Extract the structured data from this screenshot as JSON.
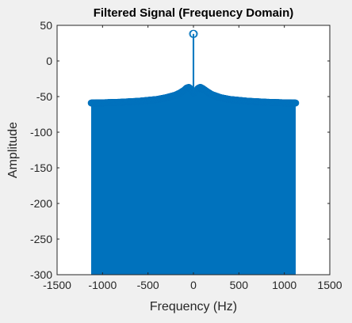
{
  "chart_data": {
    "type": "stem",
    "title": "Filtered Signal (Frequency Domain)",
    "xlabel": "Frequency (Hz)",
    "ylabel": "Amplitude",
    "xlim": [
      -1500,
      1500
    ],
    "ylim": [
      -300,
      50
    ],
    "xticks": [
      -1500,
      -1000,
      -500,
      0,
      500,
      1000,
      1500
    ],
    "yticks": [
      50,
      0,
      -50,
      -100,
      -150,
      -200,
      -250,
      -300
    ],
    "xtick_labels": [
      "-1500",
      "-1000",
      "-500",
      "0",
      "500",
      "1000",
      "1500"
    ],
    "ytick_labels": [
      "50",
      "0",
      "-50",
      "-100",
      "-150",
      "-200",
      "-250",
      "-300"
    ],
    "baseline": -300,
    "grid": false,
    "series_color": "#0072BD",
    "x_range": [
      -1125,
      1125
    ],
    "envelope": [
      [
        -1125,
        -59
      ],
      [
        -1000,
        -58.7
      ],
      [
        -800,
        -57.9
      ],
      [
        -600,
        -56.5
      ],
      [
        -400,
        -54
      ],
      [
        -300,
        -51.5
      ],
      [
        -200,
        -48
      ],
      [
        -150,
        -45
      ],
      [
        -100,
        -41
      ],
      [
        -75,
        -38
      ],
      [
        -50,
        -37
      ],
      [
        -25,
        -40
      ],
      [
        0,
        -45
      ],
      [
        25,
        -43
      ],
      [
        50,
        -38.5
      ],
      [
        75,
        -37
      ],
      [
        100,
        -38.5
      ],
      [
        150,
        -43
      ],
      [
        200,
        -47
      ],
      [
        300,
        -51.5
      ],
      [
        400,
        -54
      ],
      [
        600,
        -56.5
      ],
      [
        800,
        -57.9
      ],
      [
        1000,
        -58.7
      ],
      [
        1125,
        -59
      ]
    ],
    "peaks": [
      {
        "x": -5,
        "y": 38
      },
      {
        "x": 5,
        "y": 38
      }
    ]
  }
}
